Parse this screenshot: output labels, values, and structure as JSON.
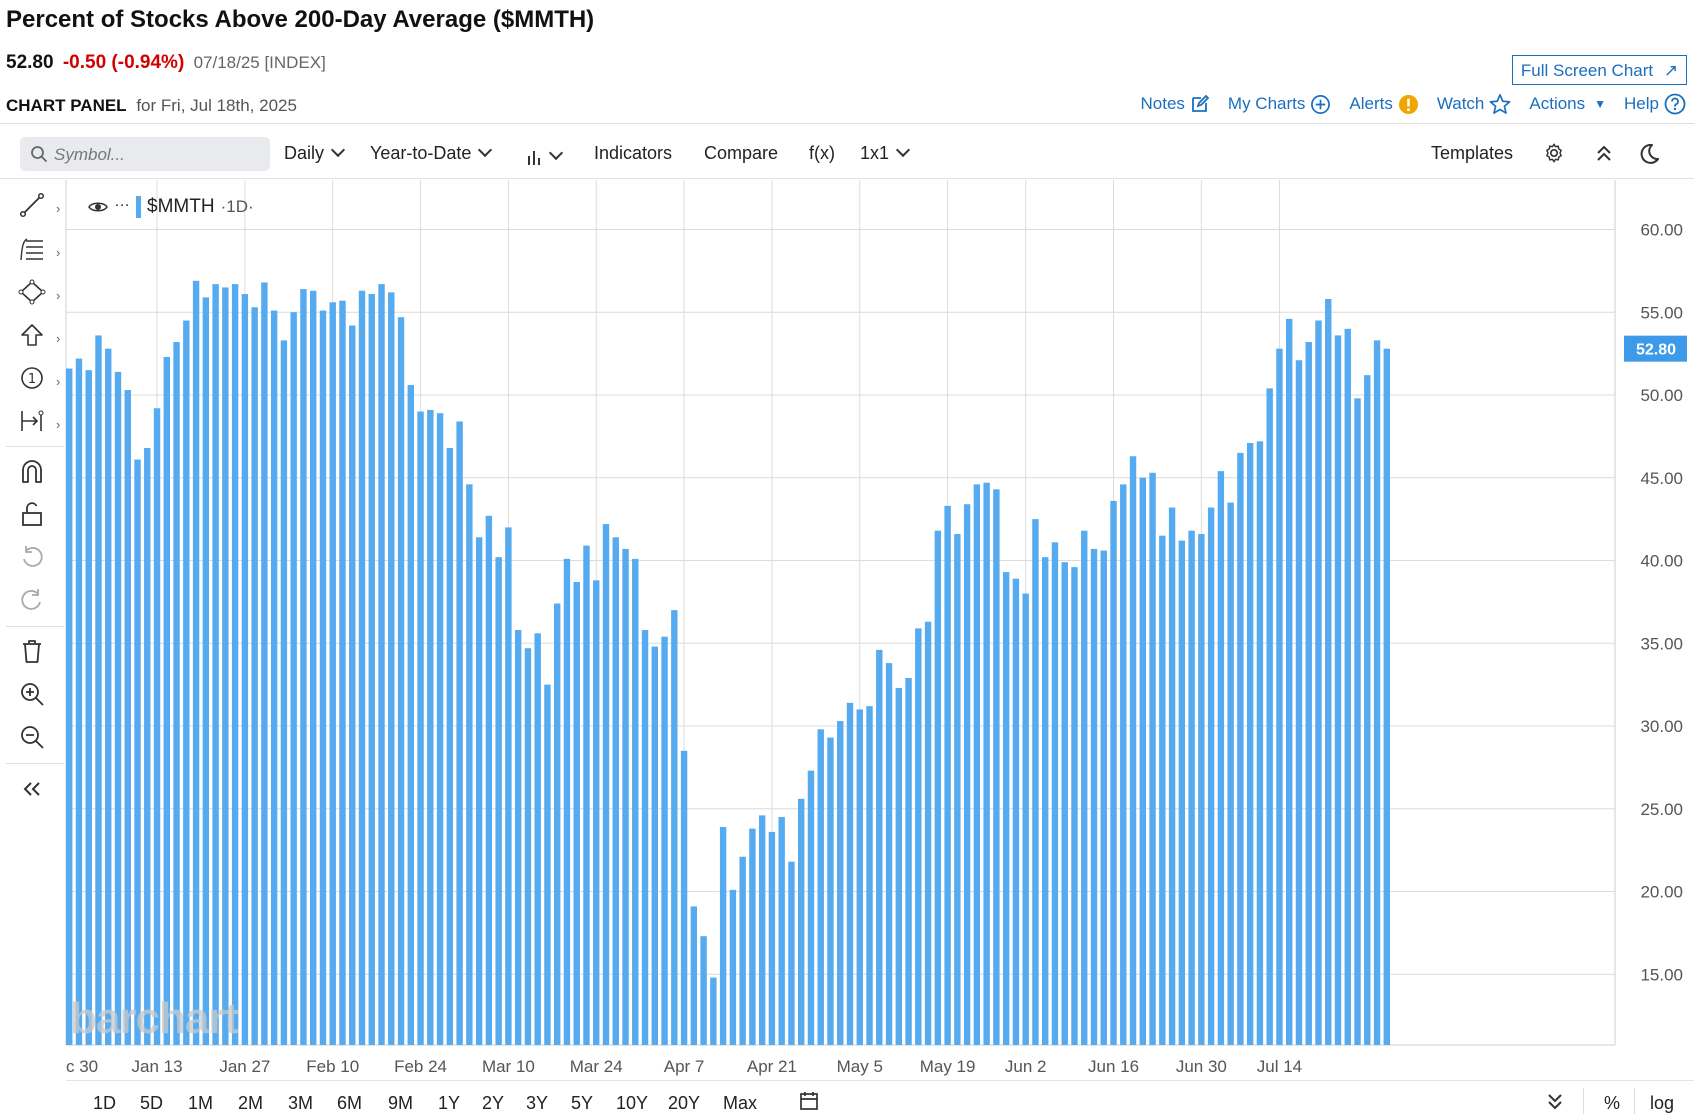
{
  "header": {
    "title": "Percent of Stocks Above 200-Day Average ($MMTH)",
    "last": "52.80",
    "change": "-0.50 (-0.94%)",
    "meta": "07/18/25 [INDEX]",
    "full_screen_label": "Full Screen Chart",
    "panel_label": "CHART PANEL",
    "panel_date": "for Fri, Jul 18th, 2025"
  },
  "links": {
    "notes": "Notes",
    "my_charts": "My Charts",
    "alerts": "Alerts",
    "watch": "Watch",
    "actions": "Actions",
    "help": "Help"
  },
  "toolbar": {
    "search_placeholder": "Symbol...",
    "interval": "Daily",
    "period": "Year-to-Date",
    "indicators": "Indicators",
    "compare": "Compare",
    "fx": "f(x)",
    "layout": "1x1",
    "templates": "Templates"
  },
  "ranges": [
    "1D",
    "5D",
    "1M",
    "2M",
    "3M",
    "6M",
    "9M",
    "1Y",
    "2Y",
    "3Y",
    "5Y",
    "10Y",
    "20Y",
    "Max"
  ],
  "bottom_right": {
    "percent": "%",
    "log": "log"
  },
  "watermark": "barchart",
  "colors": {
    "bar": "#55aaf0",
    "accent": "#1a6fbf",
    "down": "#d40000",
    "label_bg": "#3d9ae8"
  },
  "chart_data": {
    "type": "bar",
    "title": "Percent of Stocks Above 200-Day Average ($MMTH)",
    "legend": "$MMTH",
    "legend_interval": "1D",
    "last_value_label": "52.80",
    "ylim": [
      10,
      62
    ],
    "yticks": [
      "60.00",
      "55.00",
      "50.00",
      "45.00",
      "40.00",
      "35.00",
      "30.00",
      "25.00",
      "20.00",
      "15.00"
    ],
    "xticks": [
      "c 30",
      "Jan 13",
      "Jan 27",
      "Feb 10",
      "Feb 24",
      "Mar 10",
      "Mar 24",
      "Apr 7",
      "Apr 21",
      "May 5",
      "May 19",
      "Jun 2",
      "Jun 16",
      "Jun 30",
      "Jul 14"
    ],
    "xtick_index": [
      0,
      9,
      18,
      27,
      36,
      45,
      54,
      63,
      72,
      81,
      90,
      98,
      107,
      116,
      124
    ],
    "values": [
      51.6,
      52.2,
      51.5,
      53.6,
      52.8,
      51.4,
      50.3,
      46.1,
      46.8,
      49.2,
      52.3,
      53.2,
      54.5,
      56.9,
      55.9,
      56.7,
      56.5,
      56.7,
      56.1,
      55.3,
      56.8,
      55.1,
      53.3,
      55.0,
      56.4,
      56.3,
      55.1,
      55.6,
      55.7,
      54.2,
      56.3,
      56.1,
      56.7,
      56.2,
      54.7,
      50.6,
      49.0,
      49.1,
      48.9,
      46.8,
      48.4,
      44.6,
      41.4,
      42.7,
      40.2,
      42.0,
      35.8,
      34.7,
      35.6,
      32.5,
      37.4,
      40.1,
      38.7,
      40.9,
      38.8,
      42.2,
      41.4,
      40.7,
      40.1,
      35.8,
      34.8,
      35.4,
      37.0,
      28.5,
      19.1,
      17.3,
      14.8,
      23.9,
      20.1,
      22.1,
      23.8,
      24.6,
      23.6,
      24.5,
      21.8,
      25.6,
      27.3,
      29.8,
      29.3,
      30.3,
      31.4,
      31.0,
      31.2,
      34.6,
      33.8,
      32.3,
      32.9,
      35.9,
      36.3,
      41.8,
      43.3,
      41.6,
      43.4,
      44.6,
      44.7,
      44.3,
      39.3,
      38.9,
      38.0,
      42.5,
      40.2,
      41.1,
      39.9,
      39.6,
      41.8,
      40.7,
      40.6,
      43.6,
      44.6,
      46.3,
      45.0,
      45.3,
      41.5,
      43.2,
      41.2,
      41.8,
      41.6,
      43.2,
      45.4,
      43.5,
      46.5,
      47.1,
      47.2,
      50.4,
      52.8,
      54.6,
      52.1,
      53.2,
      54.5,
      55.8,
      53.6,
      54.0,
      49.8,
      51.2,
      53.3,
      52.8
    ]
  }
}
